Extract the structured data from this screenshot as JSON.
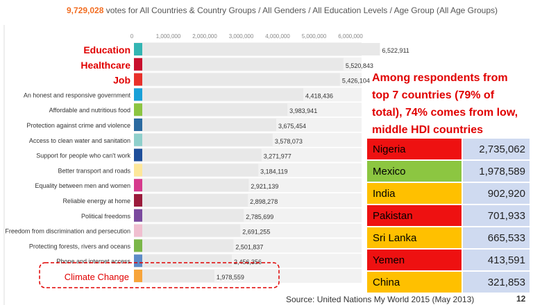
{
  "header": {
    "count": "9,729,028",
    "text": "votes for All Countries & Country Groups / All Genders / All Education Levels / Age Group (All Age Groups)"
  },
  "chart_data": {
    "type": "bar",
    "orientation": "horizontal",
    "xlim": [
      0,
      6500000
    ],
    "x_ticks": [
      "0",
      "1,000,000",
      "2,000,000",
      "3,000,000",
      "4,000,000",
      "5,000,000",
      "6,000,000"
    ],
    "categories": [
      "Education",
      "Healthcare",
      "Job",
      "An honest and responsive government",
      "Affordable and nutritious food",
      "Protection against crime and violence",
      "Access to clean water and sanitation",
      "Support for people who can't work",
      "Better transport and roads",
      "Equality between men and women",
      "Reliable energy at home",
      "Political freedoms",
      "Freedom from discrimination and persecution",
      "Protecting forests, rivers and oceans",
      "Phone and internet access",
      "Climate Change"
    ],
    "values": [
      6522911,
      5520843,
      5426104,
      4418436,
      3983941,
      3675454,
      3578073,
      3271977,
      3184119,
      2921139,
      2898278,
      2785699,
      2691255,
      2501837,
      2456356,
      1978559
    ],
    "value_labels": [
      "6,522,911",
      "5,520,843",
      "5,426,104",
      "4,418,436",
      "3,983,941",
      "3,675,454",
      "3,578,073",
      "3,271,977",
      "3,184,119",
      "2,921,139",
      "2,898,278",
      "2,785,699",
      "2,691,255",
      "2,501,837",
      "2,456,356",
      "1,978,559"
    ],
    "colors": [
      "#33b5b3",
      "#c8102e",
      "#e8302a",
      "#19a0d8",
      "#8cc541",
      "#2b6aa0",
      "#8fd0cc",
      "#1e4e9a",
      "#fde79a",
      "#d63a8c",
      "#9b1b3b",
      "#7a4a9e",
      "#f0bfd0",
      "#7ab648",
      "#5d8bc8",
      "#f7a43a"
    ],
    "highlight_colors": {
      "red": "#e00000"
    }
  },
  "callout": {
    "lines": [
      "Among respondents from",
      "top 7 countries (79% of",
      "total), 74% comes from low,",
      "middle HDI countries"
    ]
  },
  "country_table": [
    {
      "country": "Nigeria",
      "votes": "2,735,062",
      "color": "#ee1111"
    },
    {
      "country": "Mexico",
      "votes": "1,978,589",
      "color": "#8cc641"
    },
    {
      "country": "India",
      "votes": "902,920",
      "color": "#ffc000"
    },
    {
      "country": "Pakistan",
      "votes": "701,933",
      "color": "#ee1111"
    },
    {
      "country": "Sri Lanka",
      "votes": "665,533",
      "color": "#ffc000"
    },
    {
      "country": "Yemen",
      "votes": "413,591",
      "color": "#ee1111"
    },
    {
      "country": "China",
      "votes": "321,853",
      "color": "#ffc000"
    }
  ],
  "footer": {
    "source": "Source: United Nations My World 2015 (May 2013)",
    "page": "12"
  }
}
